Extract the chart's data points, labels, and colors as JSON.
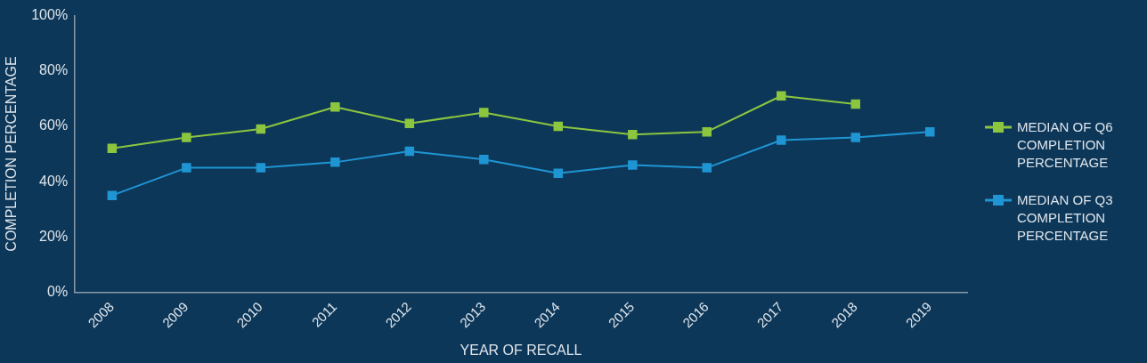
{
  "chart_data": {
    "type": "line",
    "xlabel": "YEAR OF RECALL",
    "ylabel": "COMPLETION PERCENTAGE",
    "categories": [
      "2008",
      "2009",
      "2010",
      "2011",
      "2012",
      "2013",
      "2014",
      "2015",
      "2016",
      "2017",
      "2018",
      "2019"
    ],
    "series": [
      {
        "name": "MEDIAN OF Q6 COMPLETION PERCENTAGE",
        "color": "#8cc63f",
        "values": [
          52,
          56,
          59,
          67,
          61,
          65,
          60,
          57,
          58,
          71,
          68,
          null
        ]
      },
      {
        "name": "MEDIAN OF Q3 COMPLETION PERCENTAGE",
        "color": "#1f95d3",
        "values": [
          35,
          45,
          45,
          47,
          51,
          48,
          43,
          46,
          45,
          55,
          56,
          58
        ]
      }
    ],
    "ylim": [
      0,
      100
    ],
    "yticks": [
      {
        "value": 0,
        "label": "0%"
      },
      {
        "value": 20,
        "label": "20%"
      },
      {
        "value": 40,
        "label": "40%"
      },
      {
        "value": 60,
        "label": "60%"
      },
      {
        "value": 80,
        "label": "80%"
      },
      {
        "value": 100,
        "label": "100%"
      }
    ],
    "grid": false,
    "legend": "right",
    "marker": "square",
    "line_style": "solid"
  }
}
